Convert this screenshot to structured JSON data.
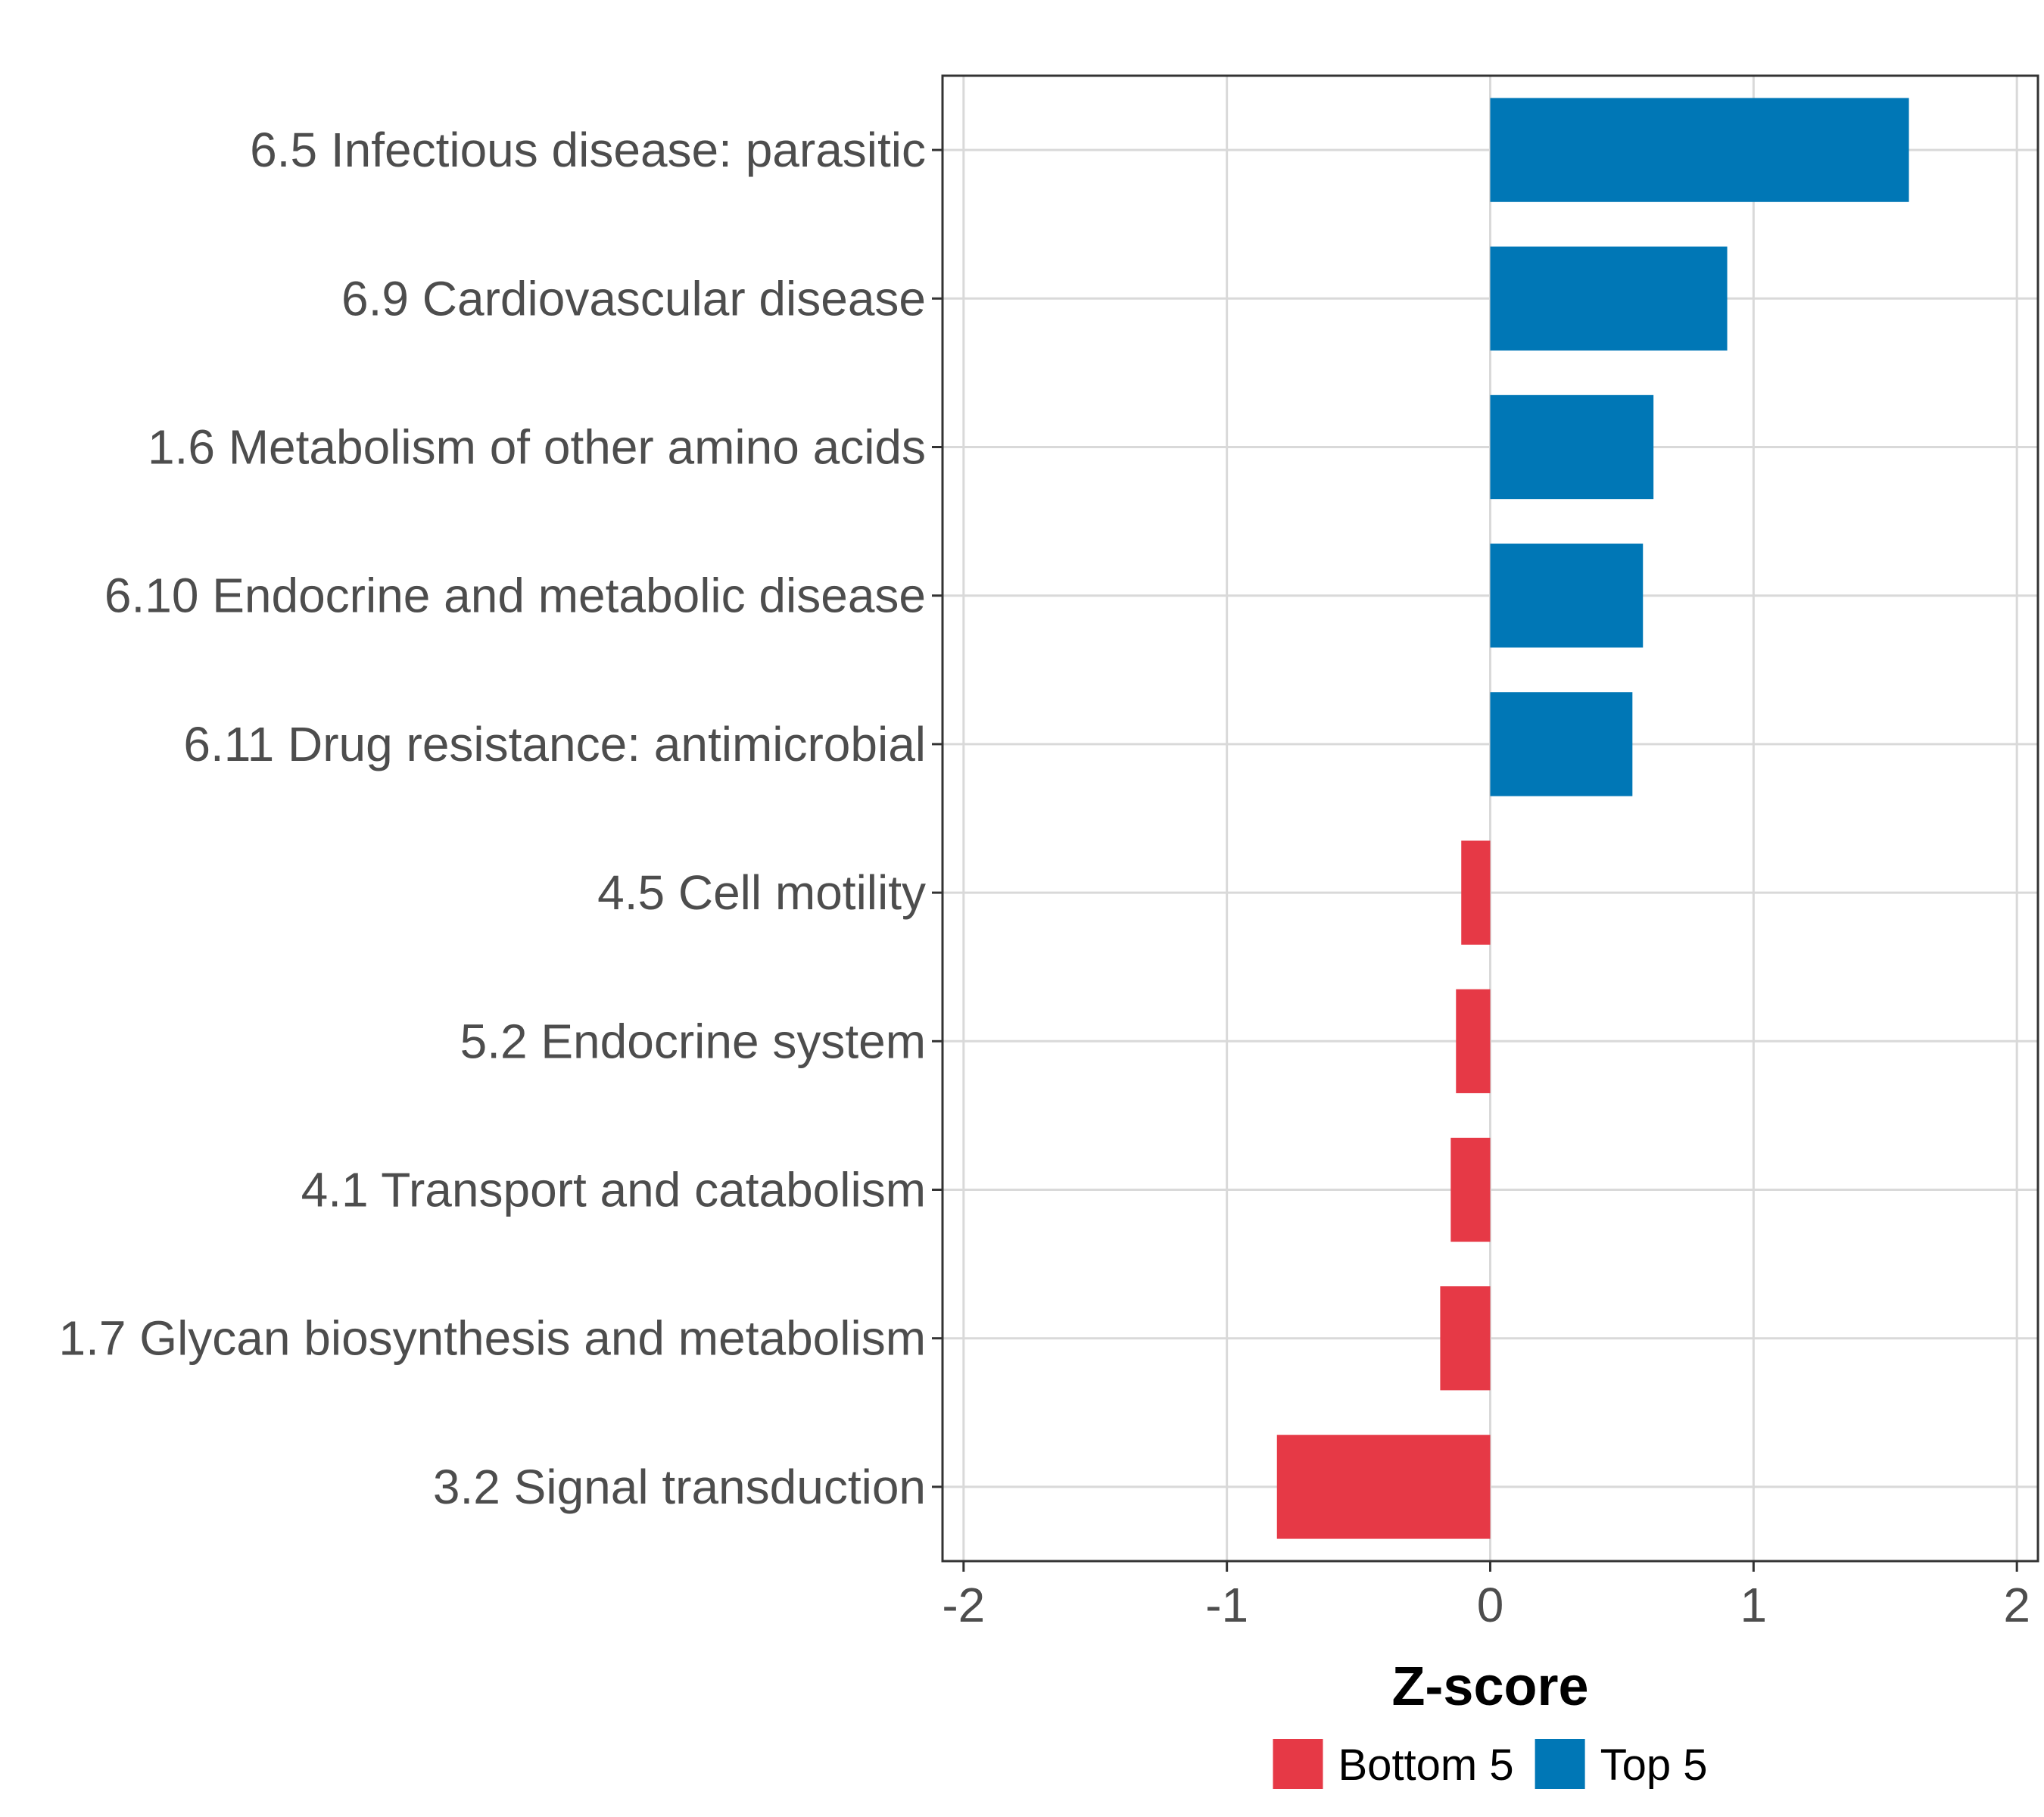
{
  "chart_data": {
    "type": "bar",
    "orientation": "horizontal",
    "title": "",
    "xlabel": "Z-score",
    "ylabel": "",
    "xlim": [
      -2.08,
      2.08
    ],
    "xticks": [
      -2,
      -1,
      0,
      1,
      2
    ],
    "xtick_labels": [
      "-2",
      "-1",
      "0",
      "1",
      "2"
    ],
    "grid": true,
    "legend_position": "bottom",
    "categories": [
      "6.5 Infectious disease: parasitic",
      "6.9 Cardiovascular disease",
      "1.6 Metabolism of other amino acids",
      "6.10 Endocrine and metabolic disease",
      "6.11 Drug resistance: antimicrobial",
      "4.5 Cell motility",
      "5.2 Endocrine system",
      "4.1 Transport and catabolism",
      "1.7 Glycan biosynthesis and metabolism",
      "3.2 Signal transduction"
    ],
    "values": [
      1.59,
      0.9,
      0.62,
      0.58,
      0.54,
      -0.11,
      -0.13,
      -0.15,
      -0.19,
      -0.81
    ],
    "groups": [
      "Top 5",
      "Top 5",
      "Top 5",
      "Top 5",
      "Top 5",
      "Bottom 5",
      "Bottom 5",
      "Bottom 5",
      "Bottom 5",
      "Bottom 5"
    ],
    "legend": [
      {
        "name": "Bottom 5",
        "color": "#e63946"
      },
      {
        "name": "Top 5",
        "color": "#0077b6"
      }
    ]
  },
  "colors": {
    "top": "#0077b6",
    "bottom": "#e63946",
    "grid": "#d9d9d9",
    "panel_border": "#333333"
  }
}
